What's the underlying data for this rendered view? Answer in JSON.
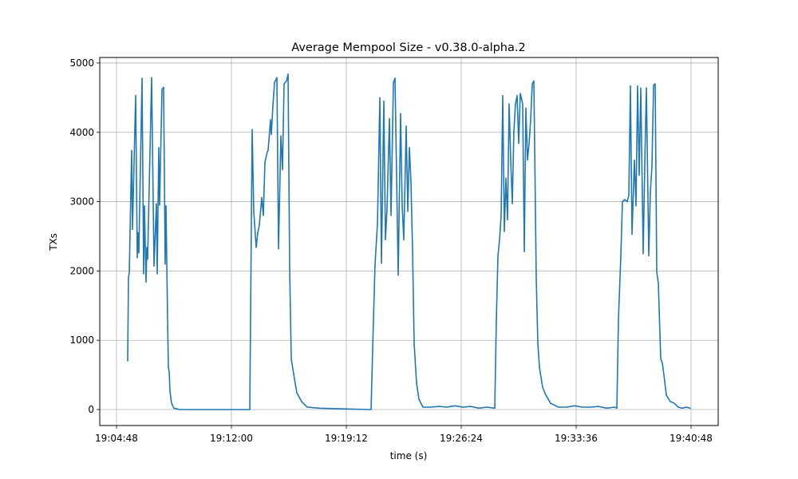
{
  "chart_data": {
    "type": "line",
    "title": "Average Mempool Size  -  v0.38.0-alpha.2",
    "xlabel": "time (s)",
    "ylabel": "TXs",
    "xlim": [
      "19:03:45",
      "19:42:30"
    ],
    "ylim": [
      -230,
      5080
    ],
    "x_ticks": [
      "19:04:48",
      "19:12:00",
      "19:19:12",
      "19:26:24",
      "19:33:36",
      "19:40:48"
    ],
    "y_ticks": [
      0,
      1000,
      2000,
      3000,
      4000,
      5000
    ],
    "grid": true,
    "line_color": "#1f77b4",
    "series": [
      {
        "x": [
          "19:05:30",
          "19:05:33",
          "19:05:36",
          "19:05:45",
          "19:05:48",
          "19:06:00",
          "19:06:06",
          "19:06:09",
          "19:06:12",
          "19:06:24",
          "19:06:30",
          "19:06:33",
          "19:06:39",
          "19:06:42",
          "19:06:45",
          "19:07:00",
          "19:07:06",
          "19:07:09",
          "19:07:18",
          "19:07:21",
          "19:07:27",
          "19:07:30",
          "19:07:39",
          "19:07:45",
          "19:07:51",
          "19:07:54",
          "19:08:00",
          "19:08:03",
          "19:08:06",
          "19:08:09",
          "19:08:15",
          "19:08:24",
          "19:08:45",
          "19:13:09",
          "19:13:18",
          "19:13:24",
          "19:13:33",
          "19:13:39",
          "19:13:45",
          "19:13:54",
          "19:14:00",
          "19:14:06",
          "19:14:15",
          "19:14:18",
          "19:14:27",
          "19:14:30",
          "19:14:36",
          "19:14:42",
          "19:14:51",
          "19:14:57",
          "19:15:06",
          "19:15:12",
          "19:15:18",
          "19:15:27",
          "19:15:33",
          "19:15:39",
          "19:15:45",
          "19:15:57",
          "19:16:06",
          "19:16:24",
          "19:16:45",
          "19:17:30",
          "19:19:00",
          "19:20:45",
          "19:20:54",
          "19:21:00",
          "19:21:09",
          "19:21:18",
          "19:21:24",
          "19:21:33",
          "19:21:39",
          "19:21:45",
          "19:21:54",
          "19:22:00",
          "19:22:09",
          "19:22:15",
          "19:22:27",
          "19:22:36",
          "19:22:42",
          "19:22:48",
          "19:22:57",
          "19:23:03",
          "19:23:09",
          "19:23:15",
          "19:23:21",
          "19:23:27",
          "19:23:36",
          "19:23:45",
          "19:24:00",
          "19:24:30",
          "19:25:00",
          "19:25:30",
          "19:26:00",
          "19:26:30",
          "19:27:00",
          "19:27:30",
          "19:28:00",
          "19:28:30",
          "19:28:36",
          "19:28:42",
          "19:28:48",
          "19:28:54",
          "19:29:00",
          "19:29:06",
          "19:29:12",
          "19:29:18",
          "19:29:24",
          "19:29:30",
          "19:29:36",
          "19:29:42",
          "19:29:48",
          "19:29:54",
          "19:30:00",
          "19:30:06",
          "19:30:15",
          "19:30:21",
          "19:30:27",
          "19:30:33",
          "19:30:39",
          "19:30:45",
          "19:30:51",
          "19:30:57",
          "19:31:06",
          "19:31:12",
          "19:31:18",
          "19:31:30",
          "19:31:42",
          "19:32:00",
          "19:32:30",
          "19:33:00",
          "19:33:30",
          "19:34:00",
          "19:34:30",
          "19:35:00",
          "19:35:30",
          "19:36:00",
          "19:36:09",
          "19:36:15",
          "19:36:24",
          "19:36:30",
          "19:36:39",
          "19:36:48",
          "19:36:54",
          "19:37:00",
          "19:37:06",
          "19:37:15",
          "19:37:21",
          "19:37:27",
          "19:37:33",
          "19:37:39",
          "19:37:48",
          "19:37:54",
          "19:38:00",
          "19:38:09",
          "19:38:15",
          "19:38:21",
          "19:38:27",
          "19:38:33",
          "19:38:39",
          "19:38:45",
          "19:38:54",
          "19:39:00",
          "19:39:06",
          "19:39:15",
          "19:39:30",
          "19:39:45",
          "19:40:00",
          "19:40:15",
          "19:40:30",
          "19:40:45"
        ],
        "y": [
          700,
          1910,
          1970,
          3740,
          2600,
          4530,
          2190,
          2550,
          2260,
          4780,
          1960,
          2940,
          1840,
          2340,
          2170,
          4790,
          2990,
          2070,
          2970,
          1960,
          3780,
          2950,
          4620,
          4650,
          2100,
          2940,
          1300,
          610,
          550,
          265,
          90,
          20,
          0,
          0,
          4040,
          2860,
          2340,
          2550,
          2660,
          3060,
          2800,
          3570,
          3720,
          3740,
          4180,
          3970,
          4380,
          4720,
          4790,
          2320,
          3950,
          3460,
          4700,
          4740,
          4840,
          2020,
          730,
          440,
          240,
          115,
          35,
          20,
          10,
          0,
          1300,
          2100,
          2680,
          4500,
          2110,
          4450,
          2450,
          2900,
          4200,
          2800,
          4720,
          4780,
          1940,
          4270,
          2940,
          2450,
          4090,
          2860,
          3780,
          3280,
          2280,
          950,
          380,
          150,
          35,
          35,
          45,
          35,
          55,
          35,
          45,
          20,
          35,
          20,
          1300,
          2220,
          2450,
          2800,
          4530,
          2570,
          3340,
          2740,
          4410,
          3600,
          2970,
          4030,
          4410,
          4530,
          3840,
          4560,
          4410,
          2280,
          4350,
          3600,
          3840,
          4180,
          4700,
          4740,
          1880,
          950,
          610,
          320,
          210,
          90,
          35,
          35,
          55,
          35,
          35,
          45,
          20,
          35,
          20,
          1300,
          2220,
          3000,
          3030,
          3000,
          3090,
          4670,
          2530,
          3600,
          2940,
          4670,
          3380,
          4640,
          2250,
          3550,
          4640,
          2220,
          3140,
          3520,
          4680,
          4700,
          1990,
          1820,
          730,
          670,
          500,
          210,
          115,
          90,
          35,
          20,
          35,
          20
        ]
      }
    ]
  }
}
